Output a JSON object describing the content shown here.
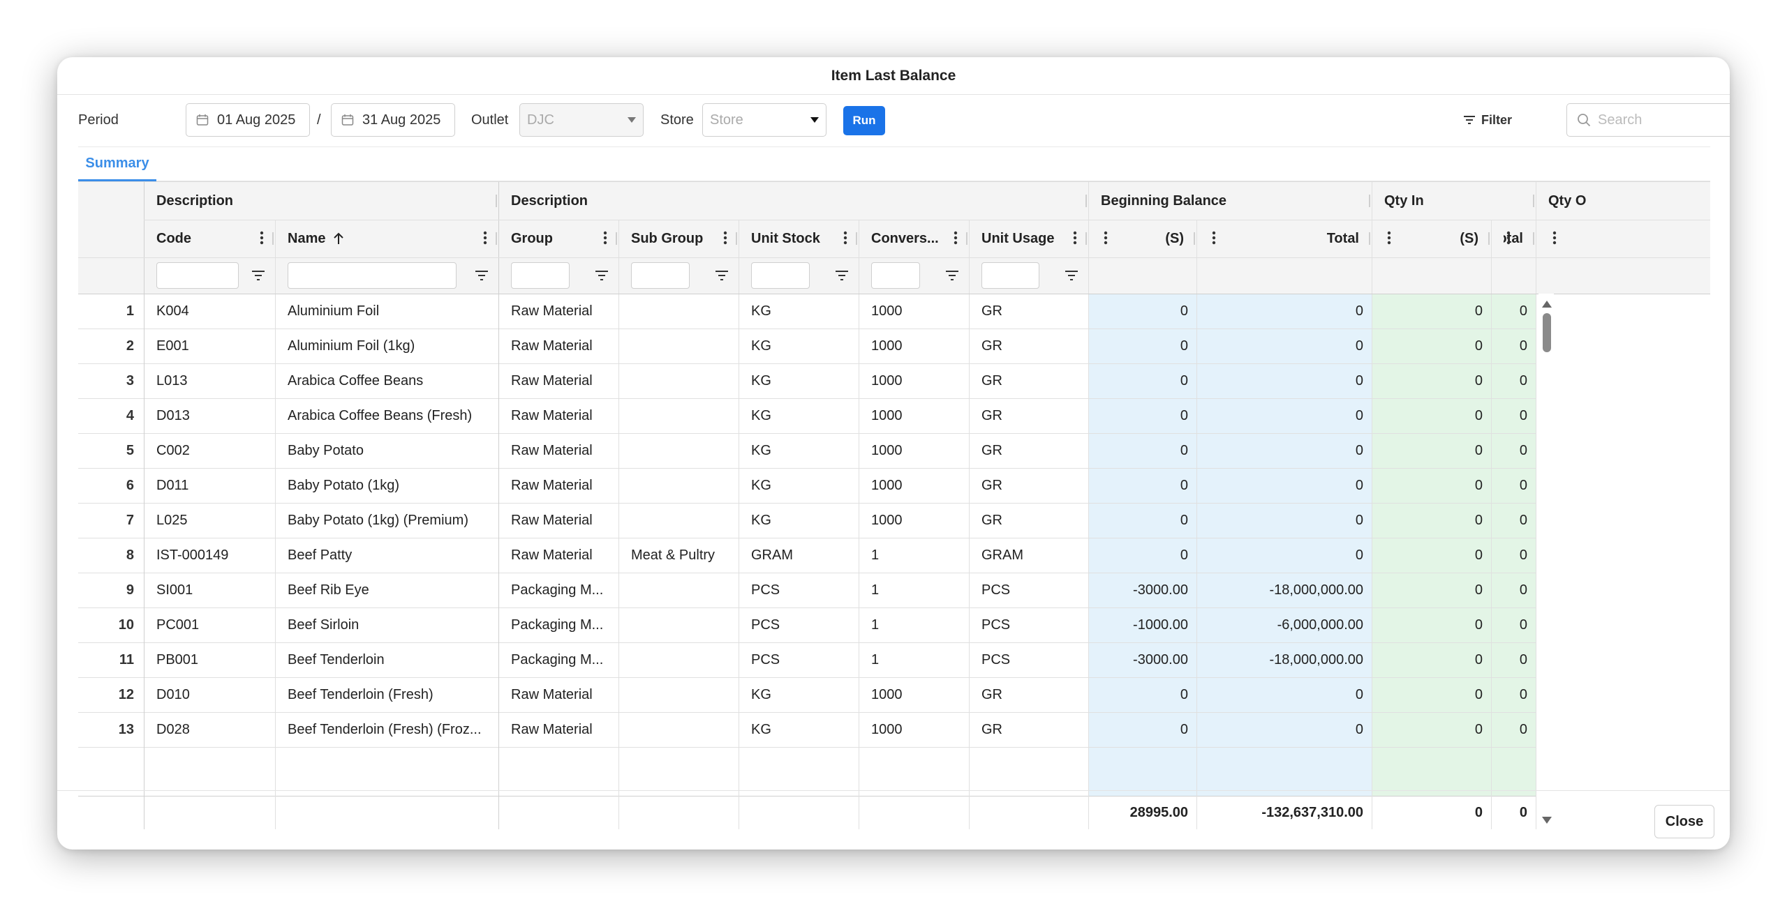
{
  "dialog": {
    "title": "Item Last Balance",
    "close_label": "Close"
  },
  "toolbar": {
    "period_label": "Period",
    "date_from": "01 Aug 2025",
    "date_sep": "/",
    "date_to": "31 Aug 2025",
    "outlet_label": "Outlet",
    "outlet_value": "DJC",
    "store_label": "Store",
    "store_placeholder": "Store",
    "run_label": "Run",
    "filter_label": "Filter",
    "search_placeholder": "Search"
  },
  "tabs": [
    {
      "label": "Summary",
      "active": true
    }
  ],
  "colors": {
    "accent": "#1a73e8",
    "tab_accent": "#3b8ee8",
    "beginning_balance_bg": "#e4f2fb",
    "qty_in_bg": "#e3f5e6",
    "qty_out_bg": "#fce6e6"
  },
  "grid": {
    "group_headers": [
      {
        "id": "g1",
        "label": "Description"
      },
      {
        "id": "g2",
        "label": "Description"
      },
      {
        "id": "g3",
        "label": "Beginning Balance"
      },
      {
        "id": "g4",
        "label": "Qty In"
      },
      {
        "id": "g5",
        "label": "Qty O"
      }
    ],
    "columns": [
      {
        "key": "code",
        "label": "Code"
      },
      {
        "key": "name",
        "label": "Name",
        "sort": "asc"
      },
      {
        "key": "group",
        "label": "Group"
      },
      {
        "key": "subgroup",
        "label": "Sub Group"
      },
      {
        "key": "unit_stock",
        "label": "Unit Stock"
      },
      {
        "key": "conversion",
        "label": "Convers..."
      },
      {
        "key": "unit_usage",
        "label": "Unit Usage"
      },
      {
        "key": "bb_s",
        "label": "(S)"
      },
      {
        "key": "bb_total",
        "label": "Total"
      },
      {
        "key": "qi_s",
        "label": "(S)"
      },
      {
        "key": "qi_total",
        "label": "Total"
      }
    ],
    "rows": [
      [
        "1",
        "K004",
        "Aluminium Foil",
        "Raw Material",
        "",
        "KG",
        "1000",
        "GR",
        "0",
        "0",
        "0",
        "0"
      ],
      [
        "2",
        "E001",
        "Aluminium Foil (1kg)",
        "Raw Material",
        "",
        "KG",
        "1000",
        "GR",
        "0",
        "0",
        "0",
        "0"
      ],
      [
        "3",
        "L013",
        "Arabica Coffee Beans",
        "Raw Material",
        "",
        "KG",
        "1000",
        "GR",
        "0",
        "0",
        "0",
        "0"
      ],
      [
        "4",
        "D013",
        "Arabica Coffee Beans (Fresh)",
        "Raw Material",
        "",
        "KG",
        "1000",
        "GR",
        "0",
        "0",
        "0",
        "0"
      ],
      [
        "5",
        "C002",
        "Baby Potato",
        "Raw Material",
        "",
        "KG",
        "1000",
        "GR",
        "0",
        "0",
        "0",
        "0"
      ],
      [
        "6",
        "D011",
        "Baby Potato (1kg)",
        "Raw Material",
        "",
        "KG",
        "1000",
        "GR",
        "0",
        "0",
        "0",
        "0"
      ],
      [
        "7",
        "L025",
        "Baby Potato (1kg) (Premium)",
        "Raw Material",
        "",
        "KG",
        "1000",
        "GR",
        "0",
        "0",
        "0",
        "0"
      ],
      [
        "8",
        "IST-000149",
        "Beef Patty",
        "Raw Material",
        "Meat & Pultry",
        "GRAM",
        "1",
        "GRAM",
        "0",
        "0",
        "0",
        "0"
      ],
      [
        "9",
        "SI001",
        "Beef Rib Eye",
        "Packaging M...",
        "",
        "PCS",
        "1",
        "PCS",
        "-3000.00",
        "-18,000,000.00",
        "0",
        "0"
      ],
      [
        "10",
        "PC001",
        "Beef Sirloin",
        "Packaging M...",
        "",
        "PCS",
        "1",
        "PCS",
        "-1000.00",
        "-6,000,000.00",
        "0",
        "0"
      ],
      [
        "11",
        "PB001",
        "Beef Tenderloin",
        "Packaging M...",
        "",
        "PCS",
        "1",
        "PCS",
        "-3000.00",
        "-18,000,000.00",
        "0",
        "0"
      ],
      [
        "12",
        "D010",
        "Beef Tenderloin (Fresh)",
        "Raw Material",
        "",
        "KG",
        "1000",
        "GR",
        "0",
        "0",
        "0",
        "0"
      ],
      [
        "13",
        "D028",
        "Beef Tenderloin (Fresh) (Froz...",
        "Raw Material",
        "",
        "KG",
        "1000",
        "GR",
        "0",
        "0",
        "0",
        "0"
      ]
    ],
    "totals": {
      "bb_s": "28995.00",
      "bb_total": "-132,637,310.00",
      "qi_s": "0",
      "qi_total": "0"
    }
  }
}
